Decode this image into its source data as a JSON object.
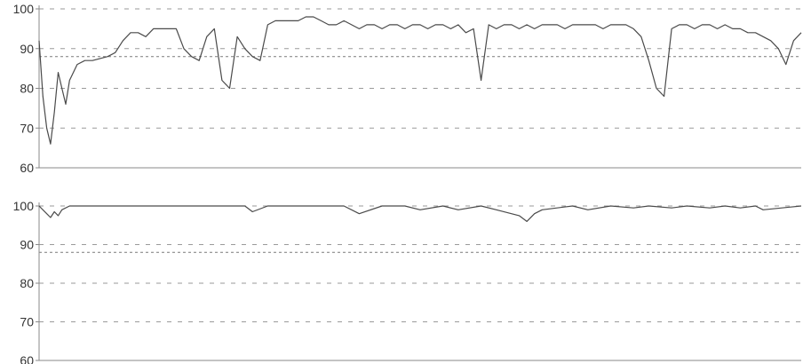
{
  "colors": {
    "background": "#ffffff",
    "trace": "#4a4a4a",
    "axis": "#8a8a8a",
    "grid": "#9a9a9a",
    "threshold": "#7a7a7a"
  },
  "chart_data": [
    {
      "type": "line",
      "title": "",
      "xlabel": "",
      "ylabel": "",
      "ylim": [
        60,
        100
      ],
      "yticks": [
        {
          "value": 100,
          "label": "100"
        },
        {
          "value": 90,
          "label": "90"
        },
        {
          "value": 80,
          "label": "80"
        },
        {
          "value": 70,
          "label": "70"
        },
        {
          "value": 60,
          "label": "60"
        }
      ],
      "grid": "dashed horizontal lines at y ticks",
      "reference_line": 88,
      "x_range": [
        0,
        100
      ],
      "series": [
        {
          "description_values_note": "approximate envelope read from trace",
          "x": [
            0,
            0.5,
            1,
            1.5,
            2,
            2.5,
            3,
            3.5,
            4,
            5,
            6,
            7,
            8,
            9,
            10,
            11,
            12,
            13,
            14,
            15,
            16,
            17,
            18,
            19,
            20,
            21,
            22,
            23,
            24,
            25,
            26,
            27,
            28,
            29,
            30,
            31,
            32,
            33,
            34,
            35,
            36,
            37,
            38,
            39,
            40,
            41,
            42,
            43,
            44,
            45,
            46,
            47,
            48,
            49,
            50,
            51,
            52,
            53,
            54,
            55,
            56,
            57,
            58,
            59,
            60,
            61,
            62,
            63,
            64,
            65,
            66,
            67,
            68,
            69,
            70,
            71,
            72,
            73,
            74,
            75,
            76,
            77,
            78,
            79,
            80,
            81,
            82,
            83,
            84,
            85,
            86,
            87,
            88,
            89,
            90,
            91,
            92,
            93,
            94,
            95,
            96,
            97,
            98,
            99,
            100
          ],
          "y": [
            92,
            78,
            70,
            66,
            74,
            84,
            80,
            76,
            82,
            86,
            87,
            87,
            87.5,
            88,
            89,
            92,
            94,
            94,
            93,
            95,
            95,
            95,
            95,
            90,
            88,
            87,
            93,
            95,
            82,
            80,
            93,
            90,
            88,
            87,
            96,
            97,
            97,
            97,
            97,
            98,
            98,
            97,
            96,
            96,
            97,
            96,
            95,
            96,
            96,
            95,
            96,
            96,
            95,
            96,
            96,
            95,
            96,
            96,
            95,
            96,
            94,
            95,
            82,
            96,
            95,
            96,
            96,
            95,
            96,
            95,
            96,
            96,
            96,
            95,
            96,
            96,
            96,
            96,
            95,
            96,
            96,
            96,
            95,
            93,
            87,
            80,
            78,
            95,
            96,
            96,
            95,
            96,
            96,
            95,
            96,
            95,
            95,
            94,
            94,
            93,
            92,
            90,
            86,
            92,
            94
          ]
        }
      ]
    },
    {
      "type": "line",
      "title": "",
      "xlabel": "",
      "ylabel": "",
      "ylim": [
        60,
        100
      ],
      "yticks": [
        {
          "value": 100,
          "label": "100"
        },
        {
          "value": 90,
          "label": "90"
        },
        {
          "value": 80,
          "label": "80"
        },
        {
          "value": 70,
          "label": "70"
        },
        {
          "value": 60,
          "label": "60"
        }
      ],
      "grid": "dashed horizontal lines at y ticks",
      "reference_line": 88,
      "x_range": [
        0,
        100
      ],
      "series": [
        {
          "x": [
            0,
            1,
            1.5,
            2,
            2.5,
            3,
            4,
            5,
            10,
            15,
            20,
            25,
            27,
            28,
            30,
            34,
            35,
            40,
            42,
            45,
            48,
            50,
            53,
            55,
            58,
            60,
            63,
            64,
            65,
            66,
            70,
            72,
            75,
            78,
            80,
            83,
            85,
            88,
            90,
            92,
            94,
            95,
            100
          ],
          "y": [
            100,
            98,
            97,
            98.5,
            97.5,
            99,
            100,
            100,
            100,
            100,
            100,
            100,
            100,
            98.5,
            100,
            100,
            100,
            100,
            98,
            100,
            100,
            99,
            100,
            99,
            100,
            99,
            97.5,
            96,
            98,
            99,
            100,
            99,
            100,
            99.5,
            100,
            99.5,
            100,
            99.5,
            100,
            99.5,
            100,
            99,
            100
          ]
        }
      ]
    }
  ]
}
